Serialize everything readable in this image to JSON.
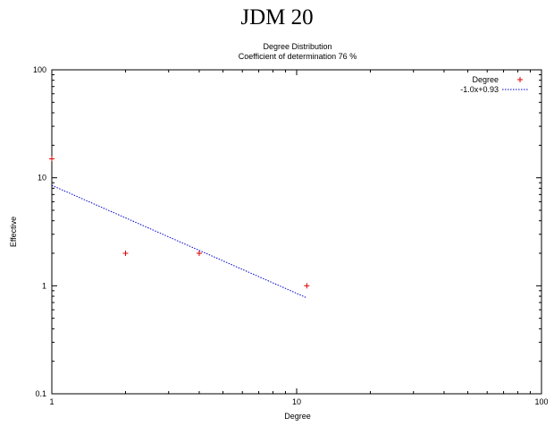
{
  "page": {
    "heading": "JDM 20"
  },
  "chart_data": {
    "type": "scatter",
    "title": "Degree Distribution",
    "subtitle": "Coefficient of determination 76 %",
    "xlabel": "Degree",
    "ylabel": "Effective",
    "xscale": "log",
    "yscale": "log",
    "xlim": [
      1,
      100
    ],
    "ylim": [
      0.1,
      100
    ],
    "x_ticks": [
      "1",
      "10",
      "100"
    ],
    "y_ticks": [
      "0.1",
      "1",
      "10",
      "100"
    ],
    "legend_position": "top-right",
    "series": [
      {
        "name": "Degree",
        "kind": "points",
        "marker": "plus",
        "color": "#dd0000",
        "points": [
          {
            "x": 1,
            "y": 15
          },
          {
            "x": 2,
            "y": 2
          },
          {
            "x": 4,
            "y": 2
          },
          {
            "x": 11,
            "y": 1
          }
        ]
      },
      {
        "name": "-1.0x+0.93",
        "kind": "line",
        "style": "dotted",
        "color": "#0000cc",
        "slope": -1.0,
        "intercept": 0.93,
        "x_range": [
          1,
          11
        ]
      }
    ]
  }
}
